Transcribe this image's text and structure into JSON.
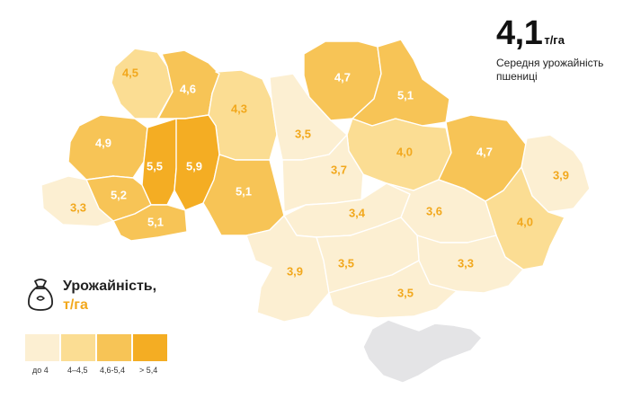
{
  "headline": {
    "value": "4,1",
    "unit": "т/га",
    "caption_line1": "Середня урожайність",
    "caption_line2": "пшениці"
  },
  "legend": {
    "title": "Урожайність,",
    "unit": "т/га",
    "icon": "grain-sack-icon",
    "bins": [
      {
        "label": "до 4",
        "color": "#fcefd2"
      },
      {
        "label": "4–4,5",
        "color": "#fbdd93"
      },
      {
        "label": "4,6-5,4",
        "color": "#f7c456"
      },
      {
        "label": "> 5,4",
        "color": "#f4ad23"
      }
    ]
  },
  "regions": [
    {
      "id": "volyn",
      "value": "4,5",
      "bin": 1
    },
    {
      "id": "rivne",
      "value": "4,6",
      "bin": 2
    },
    {
      "id": "zhytomyr",
      "value": "4,3",
      "bin": 1
    },
    {
      "id": "lviv",
      "value": "4,9",
      "bin": 2
    },
    {
      "id": "ternopil",
      "value": "5,5",
      "bin": 3
    },
    {
      "id": "khmelnytskyi",
      "value": "5,9",
      "bin": 3
    },
    {
      "id": "vinnytsia",
      "value": "5,1",
      "bin": 2
    },
    {
      "id": "ivano-frankivsk",
      "value": "5,2",
      "bin": 2
    },
    {
      "id": "zakarpattia",
      "value": "3,3",
      "bin": 0
    },
    {
      "id": "chernivtsi",
      "value": "5,1",
      "bin": 2
    },
    {
      "id": "kyiv",
      "value": "3,5",
      "bin": 0
    },
    {
      "id": "chernihiv",
      "value": "4,7",
      "bin": 2
    },
    {
      "id": "sumy",
      "value": "5,1",
      "bin": 2
    },
    {
      "id": "poltava",
      "value": "4,0",
      "bin": 1
    },
    {
      "id": "kharkiv",
      "value": "4,7",
      "bin": 2
    },
    {
      "id": "luhansk",
      "value": "3,9",
      "bin": 0
    },
    {
      "id": "donetsk",
      "value": "4,0",
      "bin": 1
    },
    {
      "id": "cherkasy",
      "value": "3,7",
      "bin": 0
    },
    {
      "id": "kirovohrad",
      "value": "3,4",
      "bin": 0
    },
    {
      "id": "dnipropetrovsk",
      "value": "3,6",
      "bin": 0
    },
    {
      "id": "zaporizhzhia",
      "value": "3,3",
      "bin": 0
    },
    {
      "id": "odesa",
      "value": "3,9",
      "bin": 0
    },
    {
      "id": "mykolaiv",
      "value": "3,5",
      "bin": 0
    },
    {
      "id": "kherson",
      "value": "3,5",
      "bin": 0
    },
    {
      "id": "crimea",
      "value": "",
      "bin": -1
    }
  ]
}
